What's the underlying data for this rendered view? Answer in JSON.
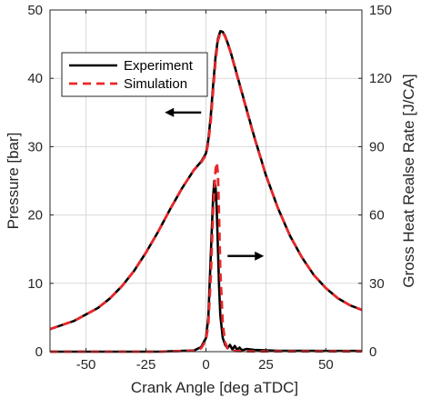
{
  "chart_data": {
    "type": "line",
    "xlabel": "Crank Angle [deg aTDC]",
    "ylabel_left": "Pressure [bar]",
    "ylabel_right": "Gross Heat Realse Rate [J/CA]",
    "xlim": [
      -65,
      65
    ],
    "ylim_left": [
      0,
      50
    ],
    "ylim_right": [
      0,
      150
    ],
    "xticks": [
      -50,
      -25,
      0,
      25,
      50
    ],
    "yticks_left": [
      0,
      10,
      20,
      30,
      40,
      50
    ],
    "yticks_right": [
      0,
      30,
      60,
      90,
      120,
      150
    ],
    "grid": true,
    "legend": {
      "placement": "top-left",
      "entries": [
        {
          "name": "Experiment",
          "color": "#000000",
          "style": "solid"
        },
        {
          "name": "Simulation",
          "color": "#e8272a",
          "style": "dashed"
        }
      ]
    },
    "annotations": [
      {
        "type": "arrow",
        "direction": "left",
        "refers_to": "pressure axis",
        "at": {
          "x": -2,
          "y": 35
        }
      },
      {
        "type": "arrow",
        "direction": "right",
        "refers_to": "heat release axis",
        "at": {
          "x": 9,
          "y": 14
        }
      }
    ],
    "series": [
      {
        "name": "Experiment",
        "quantity": "pressure",
        "axis": "left",
        "color": "#000000",
        "style": "solid",
        "x": [
          -65,
          -55,
          -45,
          -40,
          -35,
          -30,
          -25,
          -20,
          -15,
          -10,
          -5,
          -2,
          0,
          1,
          2,
          3,
          4,
          5,
          6,
          7,
          8,
          10,
          12,
          15,
          20,
          25,
          30,
          35,
          40,
          45,
          50,
          55,
          60,
          65
        ],
        "y": [
          3.3,
          4.5,
          6.4,
          7.8,
          9.6,
          11.8,
          14.5,
          17.5,
          20.8,
          23.9,
          26.6,
          27.8,
          29.0,
          31.0,
          34.5,
          39.0,
          43.2,
          45.8,
          46.9,
          46.8,
          46.2,
          44.2,
          41.7,
          37.9,
          31.6,
          25.8,
          21.0,
          17.0,
          13.8,
          11.2,
          9.3,
          7.8,
          6.8,
          6.1
        ]
      },
      {
        "name": "Simulation",
        "quantity": "pressure",
        "axis": "left",
        "color": "#e8272a",
        "style": "dashed",
        "x": [
          -65,
          -55,
          -45,
          -40,
          -35,
          -30,
          -25,
          -20,
          -15,
          -10,
          -5,
          -2,
          0,
          1,
          2,
          3,
          4,
          5,
          6,
          7,
          8,
          10,
          12,
          15,
          20,
          25,
          30,
          35,
          40,
          45,
          50,
          55,
          60,
          65
        ],
        "y": [
          3.3,
          4.5,
          6.4,
          7.8,
          9.6,
          11.8,
          14.5,
          17.5,
          20.8,
          23.9,
          26.6,
          27.7,
          28.8,
          30.6,
          33.8,
          38.2,
          42.6,
          45.5,
          46.7,
          46.7,
          46.1,
          44.1,
          41.6,
          37.8,
          31.5,
          25.8,
          21.0,
          17.0,
          13.8,
          11.2,
          9.3,
          7.8,
          6.8,
          6.1
        ]
      },
      {
        "name": "Experiment",
        "quantity": "heat release rate",
        "axis": "right",
        "color": "#000000",
        "style": "solid",
        "x": [
          -65,
          -20,
          -5,
          -2,
          0,
          1,
          2,
          3,
          3.5,
          4,
          4.5,
          5,
          5.5,
          6,
          7,
          8,
          9,
          10,
          11,
          12,
          13,
          14,
          15,
          17,
          20,
          25,
          30,
          40,
          50,
          65
        ],
        "y": [
          0,
          0,
          0.5,
          2,
          6,
          15,
          42,
          68,
          75,
          72,
          62,
          45,
          28,
          16,
          6,
          3,
          1.5,
          3,
          1,
          2.5,
          0.8,
          1.8,
          0.6,
          1.2,
          0.8,
          0.6,
          0.4,
          0.4,
          0.3,
          0.3
        ]
      },
      {
        "name": "Simulation",
        "quantity": "heat release rate",
        "axis": "right",
        "color": "#e8272a",
        "style": "dashed",
        "x": [
          -65,
          -20,
          -5,
          -2,
          0,
          1,
          2,
          3,
          4,
          4.5,
          5,
          5.5,
          6,
          7,
          8,
          9,
          10,
          12,
          15,
          20,
          30,
          65
        ],
        "y": [
          0,
          0,
          0.4,
          1.5,
          5,
          12,
          33,
          62,
          80,
          83,
          78,
          58,
          35,
          12,
          4,
          1.5,
          0.8,
          0.3,
          0.2,
          0.1,
          0.1,
          0.1
        ]
      }
    ]
  }
}
